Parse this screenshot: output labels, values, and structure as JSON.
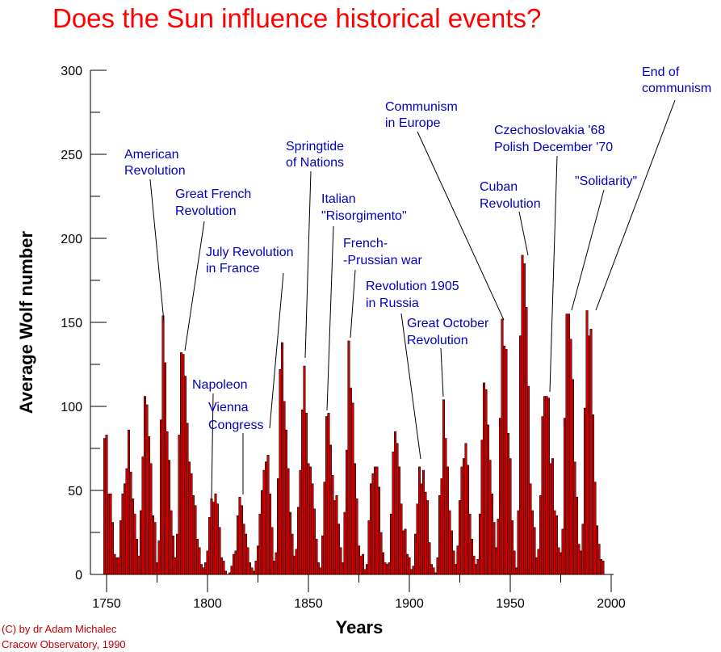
{
  "chart_data": {
    "type": "bar",
    "title": "Does the Sun influence historical events?",
    "xlabel": "Years",
    "ylabel": "Average Wolf number",
    "xlim": [
      1750,
      2000
    ],
    "ylim": [
      0,
      300
    ],
    "x_ticks": [
      "1750",
      "1800",
      "1850",
      "1900",
      "1950",
      "2000"
    ],
    "y_ticks": [
      "0",
      "50",
      "100",
      "150",
      "200",
      "250",
      "300"
    ],
    "x": [
      1749,
      1750,
      1751,
      1752,
      1753,
      1754,
      1755,
      1756,
      1757,
      1758,
      1759,
      1760,
      1761,
      1762,
      1763,
      1764,
      1765,
      1766,
      1767,
      1768,
      1769,
      1770,
      1771,
      1772,
      1773,
      1774,
      1775,
      1776,
      1777,
      1778,
      1779,
      1780,
      1781,
      1782,
      1783,
      1784,
      1785,
      1786,
      1787,
      1788,
      1789,
      1790,
      1791,
      1792,
      1793,
      1794,
      1795,
      1796,
      1797,
      1798,
      1799,
      1800,
      1801,
      1802,
      1803,
      1804,
      1805,
      1806,
      1807,
      1808,
      1809,
      1810,
      1811,
      1812,
      1813,
      1814,
      1815,
      1816,
      1817,
      1818,
      1819,
      1820,
      1821,
      1822,
      1823,
      1824,
      1825,
      1826,
      1827,
      1828,
      1829,
      1830,
      1831,
      1832,
      1833,
      1834,
      1835,
      1836,
      1837,
      1838,
      1839,
      1840,
      1841,
      1842,
      1843,
      1844,
      1845,
      1846,
      1847,
      1848,
      1849,
      1850,
      1851,
      1852,
      1853,
      1854,
      1855,
      1856,
      1857,
      1858,
      1859,
      1860,
      1861,
      1862,
      1863,
      1864,
      1865,
      1866,
      1867,
      1868,
      1869,
      1870,
      1871,
      1872,
      1873,
      1874,
      1875,
      1876,
      1877,
      1878,
      1879,
      1880,
      1881,
      1882,
      1883,
      1884,
      1885,
      1886,
      1887,
      1888,
      1889,
      1890,
      1891,
      1892,
      1893,
      1894,
      1895,
      1896,
      1897,
      1898,
      1899,
      1900,
      1901,
      1902,
      1903,
      1904,
      1905,
      1906,
      1907,
      1908,
      1909,
      1910,
      1911,
      1912,
      1913,
      1914,
      1915,
      1916,
      1917,
      1918,
      1919,
      1920,
      1921,
      1922,
      1923,
      1924,
      1925,
      1926,
      1927,
      1928,
      1929,
      1930,
      1931,
      1932,
      1933,
      1934,
      1935,
      1936,
      1937,
      1938,
      1939,
      1940,
      1941,
      1942,
      1943,
      1944,
      1945,
      1946,
      1947,
      1948,
      1949,
      1950,
      1951,
      1952,
      1953,
      1954,
      1955,
      1956,
      1957,
      1958,
      1959,
      1960,
      1961,
      1962,
      1963,
      1964,
      1965,
      1966,
      1967,
      1968,
      1969,
      1970,
      1971,
      1972,
      1973,
      1974,
      1975,
      1976,
      1977,
      1978,
      1979,
      1980,
      1981,
      1982,
      1983,
      1984,
      1985,
      1986,
      1987,
      1988,
      1989,
      1990,
      1991,
      1992,
      1993,
      1994,
      1995,
      1996
    ],
    "values": [
      81,
      83,
      48,
      48,
      31,
      12,
      10,
      10,
      32,
      48,
      54,
      63,
      86,
      61,
      45,
      36,
      21,
      11,
      38,
      70,
      106,
      101,
      82,
      66,
      35,
      31,
      7,
      20,
      92,
      154,
      126,
      85,
      68,
      38,
      23,
      10,
      24,
      83,
      132,
      131,
      118,
      90,
      67,
      60,
      47,
      41,
      21,
      16,
      6,
      4,
      7,
      14,
      34,
      45,
      43,
      48,
      42,
      28,
      10,
      8,
      2,
      0,
      1,
      5,
      12,
      14,
      35,
      46,
      41,
      30,
      24,
      16,
      7,
      4,
      2,
      8,
      17,
      36,
      50,
      62,
      67,
      71,
      48,
      28,
      8,
      13,
      57,
      122,
      138,
      103,
      86,
      63,
      37,
      24,
      11,
      15,
      40,
      62,
      98,
      124,
      96,
      66,
      64,
      54,
      39,
      21,
      7,
      4,
      23,
      55,
      94,
      96,
      77,
      59,
      44,
      47,
      30,
      16,
      7,
      37,
      74,
      139,
      111,
      102,
      66,
      45,
      17,
      11,
      12,
      3,
      6,
      32,
      54,
      60,
      64,
      64,
      52,
      25,
      13,
      7,
      6,
      7,
      36,
      73,
      85,
      78,
      64,
      42,
      26,
      27,
      12,
      10,
      3,
      5,
      24,
      42,
      64,
      54,
      62,
      49,
      44,
      19,
      6,
      4,
      1,
      10,
      47,
      57,
      104,
      81,
      64,
      38,
      26,
      14,
      6,
      17,
      44,
      64,
      69,
      78,
      65,
      36,
      21,
      11,
      6,
      9,
      36,
      80,
      114,
      110,
      89,
      68,
      48,
      31,
      16,
      33,
      93,
      152,
      136,
      134,
      84,
      69,
      32,
      14,
      4,
      38,
      142,
      190,
      185,
      159,
      112,
      54,
      38,
      28,
      10,
      15,
      47,
      94,
      106,
      106,
      105,
      66,
      69,
      38,
      35,
      16,
      13,
      27,
      93,
      155,
      155,
      140,
      116,
      67,
      46,
      18,
      14,
      30,
      99,
      157,
      142,
      146,
      95,
      55,
      29,
      18,
      9,
      8
    ]
  },
  "annotations": {
    "american": [
      "American",
      "Revolution"
    ],
    "french": [
      "Great French",
      "Revolution"
    ],
    "july": [
      "July Revolution",
      "in France"
    ],
    "napoleon": [
      "Napoleon"
    ],
    "vienna": [
      "Vienna",
      "Congress"
    ],
    "springtide": [
      "Springtide",
      "of Nations"
    ],
    "italian": [
      "Italian",
      "\"Risorgimento\""
    ],
    "prussian": [
      "French-",
      "-Prussian war"
    ],
    "rev1905": [
      "Revolution 1905",
      "in Russia"
    ],
    "october": [
      "Great October",
      "Revolution"
    ],
    "communism": [
      "Communism",
      "in Europe"
    ],
    "cuban": [
      "Cuban",
      "Revolution"
    ],
    "czech": [
      "Czechoslovakia '68",
      "Polish December '70"
    ],
    "solidarity": [
      "\"Solidarity\""
    ],
    "end_communism": [
      "End of",
      "communism"
    ]
  },
  "credit": [
    "(C) by dr Adam Michalec",
    "Cracow Observatory, 1990"
  ],
  "colors": {
    "title": "#ff0000",
    "bars": "#cc0000",
    "annotations": "#0000c0",
    "credit": "#c00000"
  }
}
